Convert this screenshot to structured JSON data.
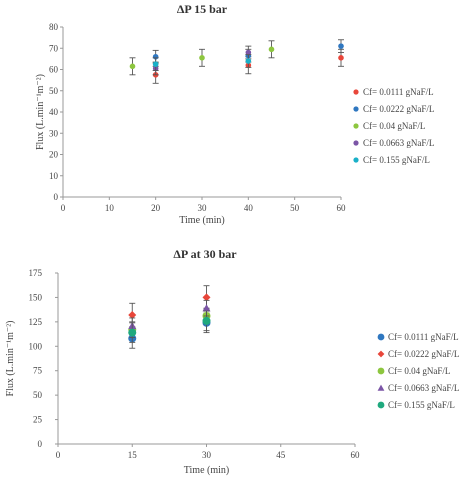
{
  "chart_data": [
    {
      "type": "scatter",
      "title": "ΔP 15 bar",
      "xlabel": "Time (min)",
      "ylabel": "Flux (L.min⁻¹m⁻²)",
      "xlim": [
        0,
        60
      ],
      "ylim": [
        0,
        80
      ],
      "xticks": [
        0,
        10,
        20,
        30,
        40,
        50,
        60
      ],
      "yticks": [
        0,
        10,
        20,
        30,
        40,
        50,
        60,
        70,
        80
      ],
      "grid": false,
      "legend_position": "right",
      "series": [
        {
          "name": "Cf= 0.0111 gNaF/L",
          "color": "#e8463a",
          "marker": "circle",
          "x": [
            20,
            40,
            60
          ],
          "y": [
            57.5,
            62,
            65.5
          ],
          "err": [
            4,
            4,
            4
          ]
        },
        {
          "name": "Cf= 0.0222 gNaF/L",
          "color": "#2f77c0",
          "marker": "circle",
          "x": [
            20,
            40,
            60
          ],
          "y": [
            66,
            66.5,
            71
          ],
          "err": [
            3,
            3,
            3
          ]
        },
        {
          "name": "Cf= 0.04 gNaF/L",
          "color": "#8dc63f",
          "marker": "circle",
          "x": [
            15,
            30,
            45
          ],
          "y": [
            61.5,
            65.5,
            69.5
          ],
          "err": [
            4,
            4,
            4
          ]
        },
        {
          "name": "Cf= 0.0663 gNaF/L",
          "color": "#7b55a6",
          "marker": "circle",
          "x": [
            20,
            40
          ],
          "y": [
            60.5,
            68
          ],
          "err": [
            3,
            3
          ]
        },
        {
          "name": "Cf= 0.155 gNaF/L",
          "color": "#1ab0c8",
          "marker": "circle",
          "x": [
            20,
            40
          ],
          "y": [
            62.5,
            64
          ],
          "err": [
            3,
            3
          ]
        }
      ]
    },
    {
      "type": "scatter",
      "title": "ΔP at 30 bar",
      "xlabel": "Time (min)",
      "ylabel": "Flux (L.min⁻¹m⁻²)",
      "xlim": [
        0,
        60
      ],
      "ylim": [
        0,
        175
      ],
      "xticks": [
        0,
        15,
        30,
        45,
        60
      ],
      "yticks": [
        0,
        25,
        50,
        75,
        100,
        125,
        150,
        175
      ],
      "grid": false,
      "legend_position": "right",
      "series": [
        {
          "name": "Cf= 0.0111 gNaF/L",
          "color": "#2f77c0",
          "marker": "circle",
          "x": [
            15,
            30
          ],
          "y": [
            108,
            124
          ],
          "err": [
            10,
            10
          ]
        },
        {
          "name": "Cf= 0.0222 gNaF/L",
          "color": "#e8463a",
          "marker": "diamond",
          "x": [
            15,
            30
          ],
          "y": [
            132,
            150
          ],
          "err": [
            12,
            12
          ]
        },
        {
          "name": "Cf= 0.04 gNaF/L",
          "color": "#8dc63f",
          "marker": "circle",
          "x": [
            15,
            30
          ],
          "y": [
            117,
            131
          ],
          "err": [
            8,
            8
          ]
        },
        {
          "name": "Cf= 0.0663 gNaF/L",
          "color": "#7b55a6",
          "marker": "triangle",
          "x": [
            15,
            30
          ],
          "y": [
            121,
            139
          ],
          "err": [
            8,
            8
          ]
        },
        {
          "name": "Cf= 0.155 gNaF/L",
          "color": "#1fa97e",
          "marker": "circle",
          "x": [
            15,
            30
          ],
          "y": [
            114,
            126
          ],
          "err": [
            10,
            10
          ]
        }
      ]
    }
  ]
}
